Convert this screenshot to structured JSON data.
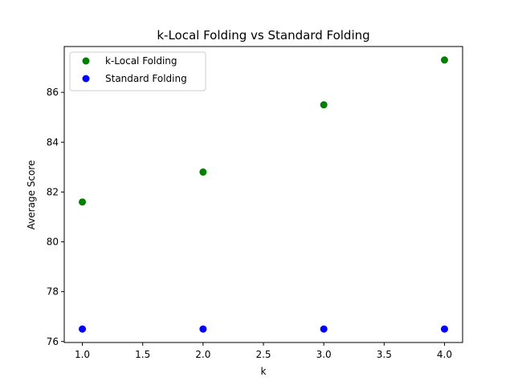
{
  "chart_data": {
    "type": "scatter",
    "title": "k-Local Folding vs Standard Folding",
    "xlabel": "k",
    "ylabel": "Average Score",
    "xlim": [
      0.85,
      4.15
    ],
    "ylim": [
      75.96,
      87.84
    ],
    "xticks": [
      1.0,
      1.5,
      2.0,
      2.5,
      3.0,
      3.5,
      4.0
    ],
    "xtick_labels": [
      "1.0",
      "1.5",
      "2.0",
      "2.5",
      "3.0",
      "3.5",
      "4.0"
    ],
    "yticks": [
      76,
      78,
      80,
      82,
      84,
      86
    ],
    "ytick_labels": [
      "76",
      "78",
      "80",
      "82",
      "84",
      "86"
    ],
    "grid": false,
    "legend_position": "top-left",
    "series": [
      {
        "name": "k-Local Folding",
        "color": "#008000",
        "x": [
          1,
          2,
          3,
          4
        ],
        "y": [
          81.6,
          82.8,
          85.5,
          87.3
        ]
      },
      {
        "name": "Standard Folding",
        "color": "#0000ff",
        "x": [
          1,
          2,
          3,
          4
        ],
        "y": [
          76.5,
          76.5,
          76.5,
          76.5
        ]
      }
    ]
  }
}
